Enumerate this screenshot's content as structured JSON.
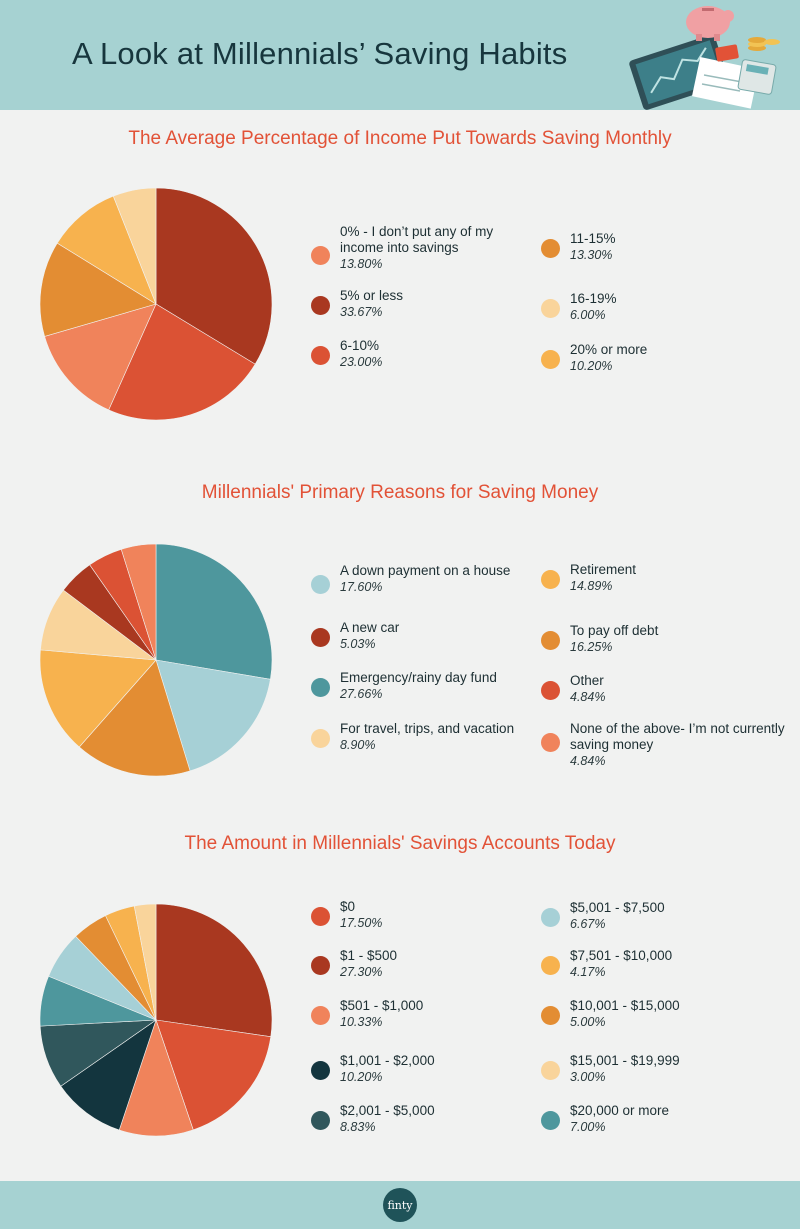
{
  "header": {
    "title": "A Look at Millennials’ Saving Habits"
  },
  "footer": {
    "logo_text": "finty"
  },
  "chart_data": [
    {
      "type": "pie",
      "title": "The Average Percentage of Income Put Towards Saving Monthly",
      "slices": [
        {
          "label": "0% - I don’t put any of my income into savings",
          "value": 13.8,
          "display": "13.80%",
          "color": "#f0835b"
        },
        {
          "label": "5% or less",
          "value": 33.67,
          "display": "33.67%",
          "color": "#a93820"
        },
        {
          "label": "6-10%",
          "value": 23.0,
          "display": "23.00%",
          "color": "#db5234"
        },
        {
          "label": "11-15%",
          "value": 13.3,
          "display": "13.30%",
          "color": "#e38d33"
        },
        {
          "label": "16-19%",
          "value": 6.0,
          "display": "6.00%",
          "color": "#f9d49b"
        },
        {
          "label": "20% or more",
          "value": 10.2,
          "display": "10.20%",
          "color": "#f7b24e"
        }
      ],
      "pie_order": [
        1,
        2,
        0,
        3,
        5,
        4
      ]
    },
    {
      "type": "pie",
      "title": "Millennials' Primary Reasons for Saving Money",
      "slices": [
        {
          "label": "A down payment on a house",
          "value": 17.6,
          "display": "17.60%",
          "color": "#a6d0d6"
        },
        {
          "label": "A new car",
          "value": 5.03,
          "display": "5.03%",
          "color": "#a93820"
        },
        {
          "label": "Emergency/rainy day fund",
          "value": 27.66,
          "display": "27.66%",
          "color": "#4e979d"
        },
        {
          "label": "For travel, trips, and vacation",
          "value": 8.9,
          "display": "8.90%",
          "color": "#f9d49b"
        },
        {
          "label": "Retirement",
          "value": 14.89,
          "display": "14.89%",
          "color": "#f7b24e"
        },
        {
          "label": "To pay off debt",
          "value": 16.25,
          "display": "16.25%",
          "color": "#e38d33"
        },
        {
          "label": "Other",
          "value": 4.84,
          "display": "4.84%",
          "color": "#db5234"
        },
        {
          "label": "None of the above- I’m not currently saving money",
          "value": 4.84,
          "display": "4.84%",
          "color": "#f0835b"
        }
      ],
      "pie_order": [
        2,
        0,
        5,
        4,
        3,
        1,
        6,
        7
      ]
    },
    {
      "type": "pie",
      "title": "The Amount in Millennials' Savings Accounts Today",
      "slices": [
        {
          "label": "$0",
          "value": 17.5,
          "display": "17.50%",
          "color": "#db5234"
        },
        {
          "label": "$1 - $500",
          "value": 27.3,
          "display": "27.30%",
          "color": "#a93820"
        },
        {
          "label": "$501 - $1,000",
          "value": 10.33,
          "display": "10.33%",
          "color": "#f0835b"
        },
        {
          "label": "$1,001 - $2,000",
          "value": 10.2,
          "display": "10.20%",
          "color": "#13353e"
        },
        {
          "label": "$2,001 - $5,000",
          "value": 8.83,
          "display": "8.83%",
          "color": "#30575c"
        },
        {
          "label": "$5,001 - $7,500",
          "value": 6.67,
          "display": "6.67%",
          "color": "#a6d0d6"
        },
        {
          "label": "$7,501 - $10,000",
          "value": 4.17,
          "display": "4.17%",
          "color": "#f7b24e"
        },
        {
          "label": "$10,001 - $15,000",
          "value": 5.0,
          "display": "5.00%",
          "color": "#e38d33"
        },
        {
          "label": "$15,001 - $19,999",
          "value": 3.0,
          "display": "3.00%",
          "color": "#f9d49b"
        },
        {
          "label": "$20,000 or more",
          "value": 7.0,
          "display": "7.00%",
          "color": "#4e979d"
        }
      ],
      "pie_order": [
        1,
        0,
        2,
        3,
        4,
        9,
        5,
        7,
        6,
        8
      ]
    }
  ]
}
